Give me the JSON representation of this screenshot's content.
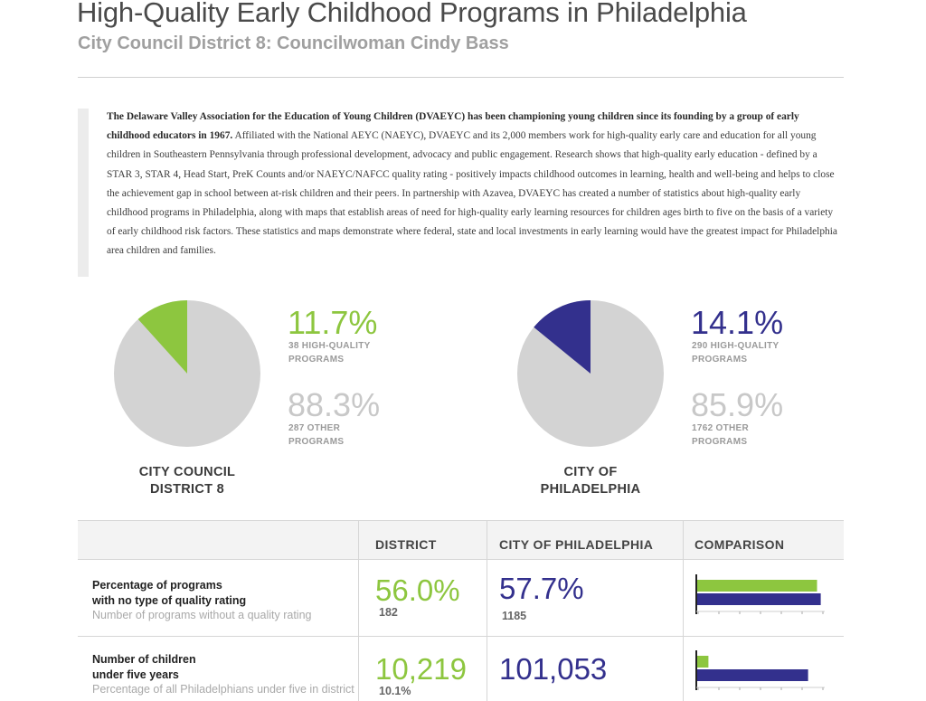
{
  "header": {
    "title": "High-Quality Early Childhood Programs in Philadelphia",
    "subtitle": "City Council District 8: Councilwoman Cindy Bass"
  },
  "intro": {
    "bold_text": "The Delaware Valley Association for the Education of Young Children (DVAEYC) has been championing young children since its founding by a group of early childhood educators in 1967.",
    "body_text": " Affiliated with the National AEYC (NAEYC), DVAEYC and its 2,000 members work for high-quality early care and education for all young children in Southeastern Pennsylvania through professional development, advocacy and public engagement.  Research shows that high-quality early education - defined by a STAR 3, STAR 4, Head Start, PreK Counts and/or NAEYC/NAFCC quality rating - positively impacts childhood outcomes in learning, health and well-being and helps to close the achievement gap in school between at-risk children and their peers.  In partnership with Azavea, DVAEYC has created a number of statistics about high-quality early childhood programs in Philadelphia, along with maps that establish areas of need for high-quality early learning resources for children ages birth to five on the basis of a variety of early childhood risk factors. These statistics and maps demonstrate where federal, state and local investments in early learning would have the greatest impact for Philadelphia area children and families."
  },
  "colors": {
    "district": "#8dc63f",
    "city": "#33308d",
    "other": "#d3d3d3",
    "other_text": "#c8c8c8"
  },
  "chart_data": [
    {
      "type": "pie",
      "label": "CITY COUNCIL DISTRICT 8",
      "slices": [
        {
          "name": "38 HIGH-QUALITY PROGRAMS",
          "percent": 11.7,
          "count": 38,
          "percent_label": "11.7%",
          "count_label": "38 HIGH-QUALITY\nPROGRAMS"
        },
        {
          "name": "287 OTHER PROGRAMS",
          "percent": 88.3,
          "count": 287,
          "percent_label": "88.3%",
          "count_label": "287 OTHER\nPROGRAMS"
        }
      ]
    },
    {
      "type": "pie",
      "label": "CITY OF PHILADELPHIA",
      "slices": [
        {
          "name": "290 HIGH-QUALITY PROGRAMS",
          "percent": 14.1,
          "count": 290,
          "percent_label": "14.1%",
          "count_label": "290 HIGH-QUALITY\nPROGRAMS"
        },
        {
          "name": "1762 OTHER PROGRAMS",
          "percent": 85.9,
          "count": 1762,
          "percent_label": "85.9%",
          "count_label": "1762 OTHER\nPROGRAMS"
        }
      ]
    },
    {
      "type": "table",
      "columns": [
        "",
        "DISTRICT",
        "CITY OF PHILADELPHIA",
        "COMPARISON"
      ],
      "rows": [
        {
          "label": "Percentage of programs\nwith no type of quality rating",
          "sublabel": "Number of programs without a quality rating",
          "district_value": "56.0%",
          "district_sub": "182",
          "city_value": "57.7%",
          "city_sub": "1185",
          "comparison": {
            "type": "bar",
            "series": [
              {
                "values": [
                  56.0
                ]
              },
              {
                "values": [
                  57.7
                ]
              }
            ],
            "xlim": [
              0,
              60
            ]
          }
        },
        {
          "label": "Number of children\nunder five years",
          "sublabel": "Percentage of all Philadelphians under five in district",
          "district_value": "10,219",
          "district_sub": "10.1%",
          "city_value": "101,053",
          "city_sub": "",
          "comparison": {
            "type": "bar",
            "series": [
              {
                "values": [
                  10219
                ]
              },
              {
                "values": [
                  101053
                ]
              }
            ],
            "xlim": [
              0,
              117000
            ]
          }
        }
      ]
    }
  ]
}
